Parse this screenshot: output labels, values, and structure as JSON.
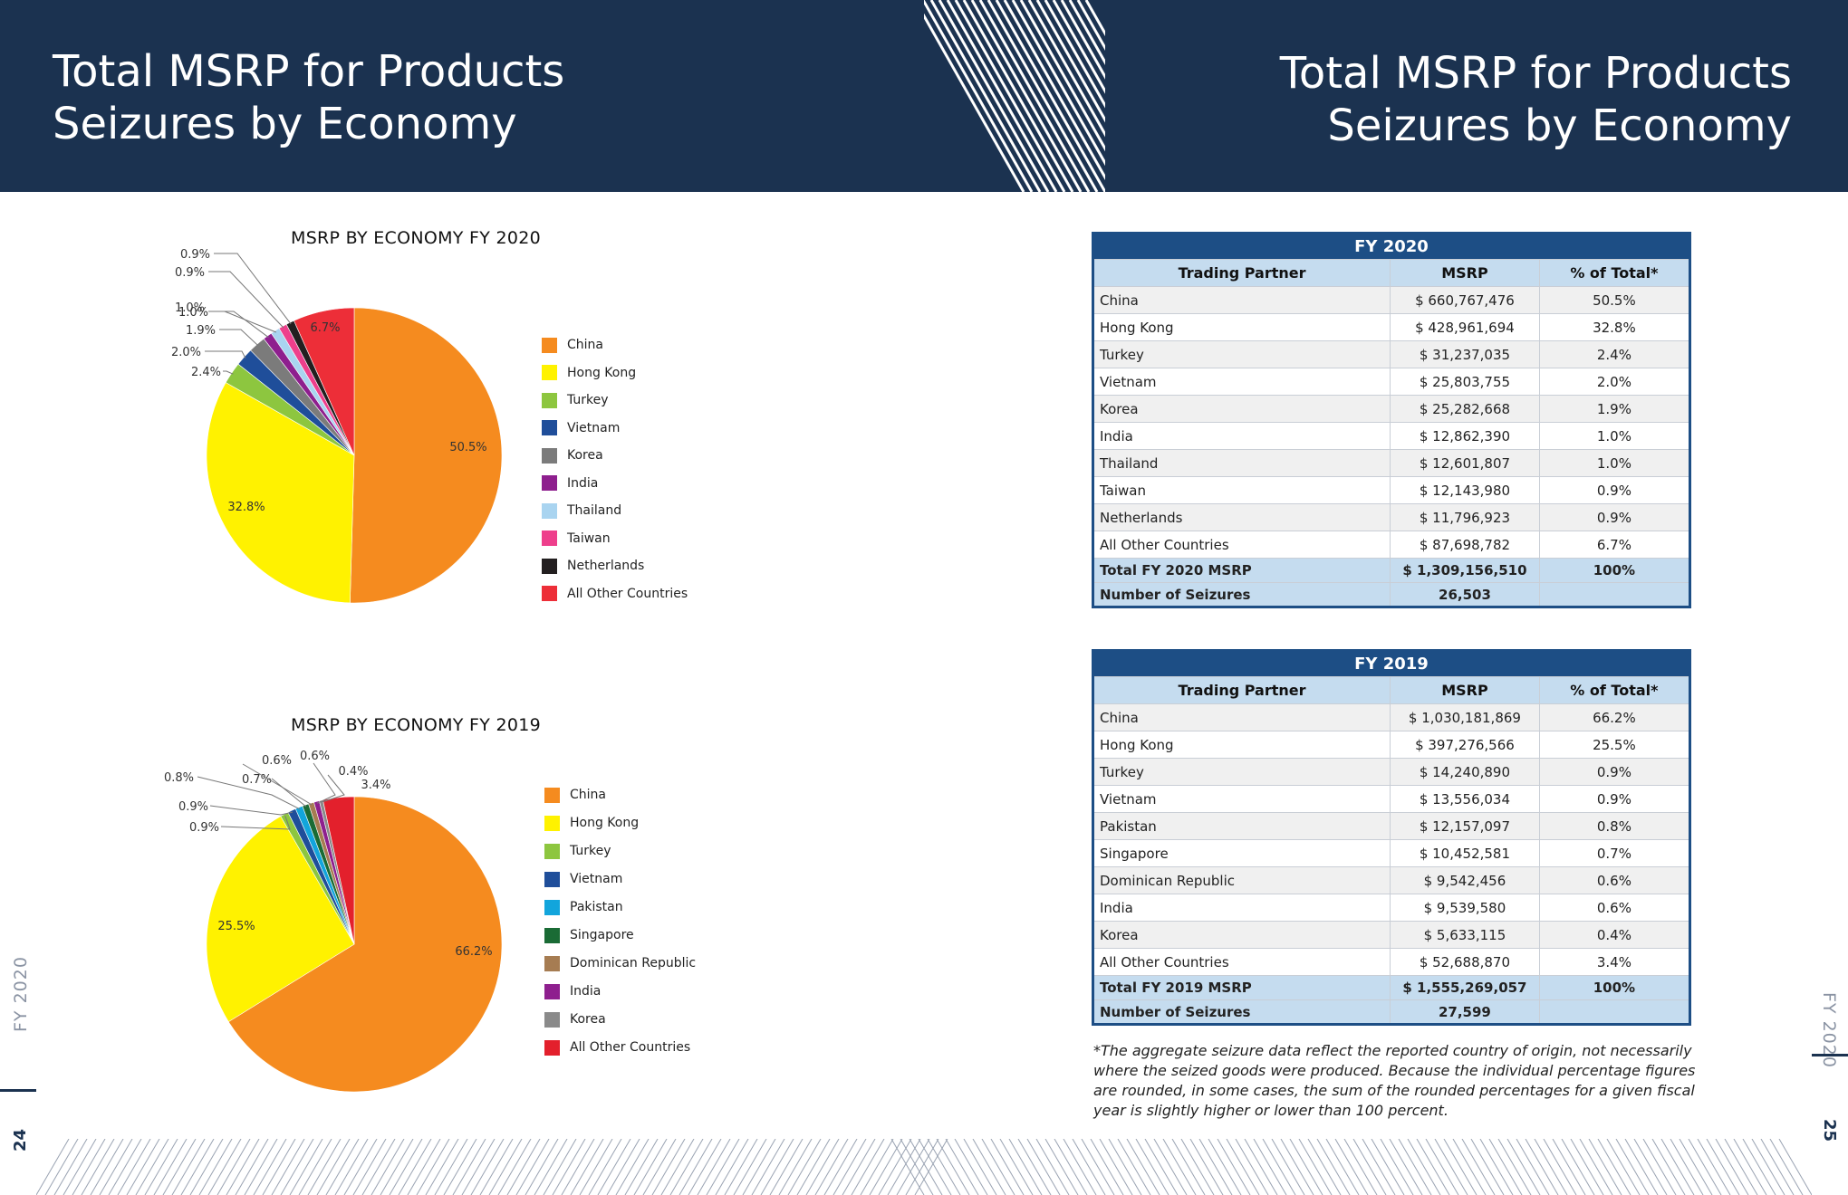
{
  "header": {
    "left_title_line1": "Total MSRP for Products",
    "left_title_line2": "Seizures by Economy",
    "right_title_line1": "Total MSRP for Products",
    "right_title_line2": "Seizures by Economy",
    "color": "#1b3250"
  },
  "chart_data": [
    {
      "type": "pie",
      "title": "MSRP BY ECONOMY FY 2020",
      "categories": [
        "China",
        "Hong Kong",
        "Turkey",
        "Vietnam",
        "Korea",
        "India",
        "Thailand",
        "Taiwan",
        "Netherlands",
        "All Other Countries"
      ],
      "values": [
        50.5,
        32.8,
        2.4,
        2.0,
        1.9,
        1.0,
        1.0,
        0.9,
        0.9,
        6.7
      ],
      "labels": [
        "50.5%",
        "32.8%",
        "2.4%",
        "2.0%",
        "1.9%",
        "1.0%",
        "1.0%",
        "0.9%",
        "0.9%",
        "6.7%"
      ],
      "colors": [
        "#f58b1f",
        "#fff200",
        "#8dc63f",
        "#1f4e9a",
        "#7b7b7b",
        "#8e1f8e",
        "#a9d4f0",
        "#ee3f8c",
        "#231f20",
        "#ed2e38"
      ],
      "legend_position": "right"
    },
    {
      "type": "pie",
      "title": "MSRP BY ECONOMY FY 2019",
      "categories": [
        "China",
        "Hong Kong",
        "Turkey",
        "Vietnam",
        "Pakistan",
        "Singapore",
        "Dominican Republic",
        "India",
        "Korea",
        "All Other Countries"
      ],
      "values": [
        66.2,
        25.5,
        0.9,
        0.9,
        0.8,
        0.7,
        0.6,
        0.6,
        0.4,
        3.4
      ],
      "labels": [
        "66.2%",
        "25.5%",
        "0.9%",
        "0.9%",
        "0.8%",
        "0.7%",
        "0.6%",
        "0.6%",
        "0.4%",
        "3.4%"
      ],
      "colors": [
        "#f58b1f",
        "#fff200",
        "#8dc63f",
        "#1f4e9a",
        "#12a5dc",
        "#1a6b35",
        "#a67c52",
        "#8e1f8e",
        "#8a8a8a",
        "#e3202c"
      ],
      "legend_position": "right"
    }
  ],
  "tables": [
    {
      "caption": "FY 2020",
      "headers": [
        "Trading Partner",
        "MSRP",
        "% of Total*"
      ],
      "rows": [
        [
          "China",
          "$ 660,767,476",
          "50.5%"
        ],
        [
          "Hong Kong",
          "$ 428,961,694",
          "32.8%"
        ],
        [
          "Turkey",
          "$ 31,237,035",
          "2.4%"
        ],
        [
          "Vietnam",
          "$ 25,803,755",
          "2.0%"
        ],
        [
          "Korea",
          "$ 25,282,668",
          "1.9%"
        ],
        [
          "India",
          "$ 12,862,390",
          "1.0%"
        ],
        [
          "Thailand",
          "$ 12,601,807",
          "1.0%"
        ],
        [
          "Taiwan",
          "$ 12,143,980",
          "0.9%"
        ],
        [
          "Netherlands",
          "$ 11,796,923",
          "0.9%"
        ],
        [
          "All Other Countries",
          "$ 87,698,782",
          "6.7%"
        ]
      ],
      "total": [
        "Total FY 2020 MSRP",
        "$ 1,309,156,510",
        "100%"
      ],
      "seizures": [
        "Number of Seizures",
        "26,503",
        ""
      ]
    },
    {
      "caption": "FY 2019",
      "headers": [
        "Trading Partner",
        "MSRP",
        "% of Total*"
      ],
      "rows": [
        [
          "China",
          "$ 1,030,181,869",
          "66.2%"
        ],
        [
          "Hong Kong",
          "$ 397,276,566",
          "25.5%"
        ],
        [
          "Turkey",
          "$ 14,240,890",
          "0.9%"
        ],
        [
          "Vietnam",
          "$ 13,556,034",
          "0.9%"
        ],
        [
          "Pakistan",
          "$ 12,157,097",
          "0.8%"
        ],
        [
          "Singapore",
          "$ 10,452,581",
          "0.7%"
        ],
        [
          "Dominican Republic",
          "$ 9,542,456",
          "0.6%"
        ],
        [
          "India",
          "$ 9,539,580",
          "0.6%"
        ],
        [
          "Korea",
          "$ 5,633,115",
          "0.4%"
        ],
        [
          "All Other Countries",
          "$ 52,688,870",
          "3.4%"
        ]
      ],
      "total": [
        "Total FY 2019 MSRP",
        "$ 1,555,269,057",
        "100%"
      ],
      "seizures": [
        "Number of Seizures",
        "27,599",
        ""
      ]
    }
  ],
  "footnote": "*The aggregate seizure data reflect the reported country of origin, not necessarily where the seized goods were produced. Because the individual percentage figures are rounded, in some cases, the sum of the rounded percentages for a given fiscal year is slightly higher or lower than 100 percent.",
  "side": {
    "left_label": "FY 2020",
    "right_label": "FY 2020",
    "left_page": "24",
    "right_page": "25"
  }
}
